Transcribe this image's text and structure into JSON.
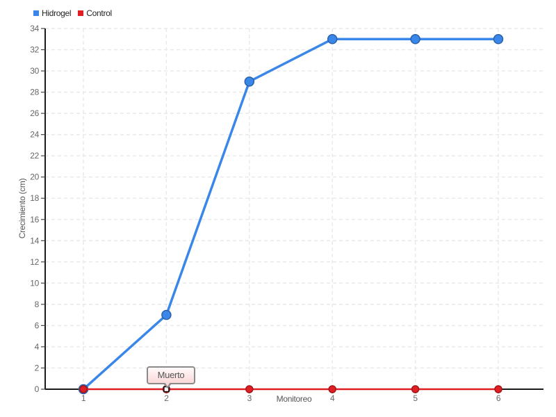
{
  "chart_data": {
    "type": "line",
    "x": [
      1,
      2,
      3,
      4,
      5,
      6
    ],
    "series": [
      {
        "name": "Hidrogel",
        "color": "#3b87e9",
        "values": [
          0,
          7,
          29,
          33,
          33,
          33
        ]
      },
      {
        "name": "Control",
        "color": "#e01f25",
        "values": [
          0,
          0,
          0,
          0,
          0,
          0
        ]
      }
    ],
    "xlabel": "Monitoreo",
    "ylabel": "Crecimiento (cm)",
    "ylim": [
      0,
      34
    ],
    "ytick_step": 2,
    "grid": true,
    "legend_position": "top-left",
    "annotation": {
      "text": "Muerto",
      "x": 2,
      "y": 0,
      "series": "Control"
    }
  },
  "colors": {
    "grid": "#e8e8e8",
    "axis": "#1a1a1a",
    "tick_label": "#666666",
    "annotation_border": "#8a8a8a"
  }
}
